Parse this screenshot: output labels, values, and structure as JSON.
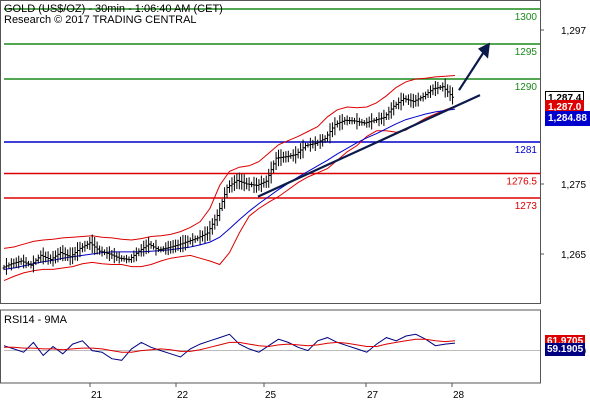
{
  "header": {
    "title": "GOLD (US$/OZ) - 30min - 1:06:40 AM (CET)",
    "source": "Research © 2017 TRADING CENTRAL"
  },
  "chart_data": [
    {
      "type": "candlestick",
      "title": "GOLD (US$/OZ) - 30min - 1:06:40 AM (CET)",
      "x_tick_labels": [
        "21",
        "22",
        "25",
        "27",
        "28"
      ],
      "y_tick_labels": [
        "1,297",
        "1,275",
        "1,265"
      ],
      "ylim": [
        1258,
        1301
      ],
      "levels": [
        {
          "label": "1300",
          "value": 1300,
          "color": "#1a8a1a"
        },
        {
          "label": "1295",
          "value": 1295,
          "color": "#1a8a1a"
        },
        {
          "label": "1290",
          "value": 1290,
          "color": "#1a8a1a"
        },
        {
          "label": "1281",
          "value": 1281,
          "color": "#0000cc"
        },
        {
          "label": "1276.5",
          "value": 1276.5,
          "color": "#dd0000"
        },
        {
          "label": "1273",
          "value": 1273,
          "color": "#dd0000"
        }
      ],
      "price_tags": [
        {
          "label": "1,287.4",
          "value": 1287.4,
          "bg": "#ffffff",
          "fg": "#000000"
        },
        {
          "label": "1,287.0",
          "value": 1286.1,
          "bg": "#dd0000",
          "fg": "#ffffff"
        },
        {
          "label": "1,284.88",
          "value": 1284.6,
          "bg": "#0000cc",
          "fg": "#ffffff"
        }
      ],
      "price_path": [
        1263,
        1263.6,
        1264,
        1263.4,
        1264.8,
        1264.2,
        1265.2,
        1264.6,
        1265.8,
        1266.6,
        1265.4,
        1265,
        1264.4,
        1264.2,
        1265.4,
        1266.4,
        1265.6,
        1265.9,
        1266.3,
        1266.8,
        1267.3,
        1268,
        1270.5,
        1274.5,
        1275.5,
        1275,
        1274.8,
        1275.4,
        1278.7,
        1278.9,
        1279.2,
        1280.5,
        1280.8,
        1281.5,
        1283.5,
        1284.1,
        1284,
        1283.7,
        1284.1,
        1284.5,
        1286.1,
        1287.2,
        1286.8,
        1287.5,
        1288.6,
        1288.9,
        1287.4
      ],
      "ma_path": [
        1262.8,
        1263,
        1263.3,
        1263.6,
        1263.9,
        1264.1,
        1264.4,
        1264.6,
        1264.8,
        1265,
        1265.2,
        1265.3,
        1265.3,
        1265.3,
        1265.3,
        1265.4,
        1265.5,
        1265.6,
        1265.8,
        1266,
        1266.3,
        1266.7,
        1267.4,
        1268.6,
        1269.9,
        1271.1,
        1272.2,
        1273.2,
        1274.2,
        1275.1,
        1276,
        1276.8,
        1277.6,
        1278.4,
        1279.3,
        1280.1,
        1280.9,
        1281.6,
        1282.2,
        1282.9,
        1283.6,
        1284.2,
        1284.6,
        1285,
        1285.3,
        1285.5,
        1285.7
      ],
      "bb_upper": [
        1265.8,
        1266,
        1266.4,
        1266.8,
        1267,
        1267.1,
        1267.3,
        1267.4,
        1267.5,
        1267.6,
        1267.4,
        1267.3,
        1267.1,
        1267,
        1267.2,
        1267.5,
        1267.6,
        1267.8,
        1268.2,
        1268.8,
        1269.6,
        1271.5,
        1274.8,
        1276.8,
        1277.4,
        1277.6,
        1278.2,
        1279.4,
        1280.6,
        1281.2,
        1281.8,
        1282.5,
        1283.2,
        1284.6,
        1285.6,
        1286,
        1285.9,
        1286,
        1286.6,
        1287.6,
        1288.8,
        1289.6,
        1290,
        1290.1,
        1290.3,
        1290.4,
        1290.5
      ],
      "bb_lower": [
        1261.2,
        1261.8,
        1262.3,
        1262.6,
        1262.8,
        1262.8,
        1263,
        1263.2,
        1263.6,
        1263.8,
        1263.6,
        1263.5,
        1263.5,
        1263.2,
        1263.2,
        1263.5,
        1264,
        1264.4,
        1264.6,
        1264.8,
        1264.4,
        1264,
        1263.5,
        1265.2,
        1268,
        1270.4,
        1271.5,
        1272.4,
        1273.2,
        1274.2,
        1275.2,
        1276,
        1276.6,
        1277.2,
        1278.4,
        1279.6,
        1280.5,
        1281.8,
        1282.6,
        1282.6,
        1282.4,
        1282.7,
        1283.6,
        1284.4,
        1285,
        1285.6,
        1286.1
      ],
      "trend_line": [
        [
          1273.2,
          "start"
        ],
        [
          1287.7,
          "end"
        ]
      ],
      "target_arrow": [
        1288.4,
        1295.2
      ]
    },
    {
      "type": "line",
      "title": "RSI14 - 9MA",
      "y_tick_labels": [
        "50"
      ],
      "ylim": [
        10,
        100
      ],
      "series": [
        {
          "name": "RSI14",
          "color": "#000080",
          "values": [
            56,
            52,
            48,
            60,
            44,
            55,
            46,
            58,
            62,
            50,
            48,
            40,
            38,
            52,
            60,
            54,
            50,
            46,
            42,
            52,
            58,
            62,
            66,
            70,
            58,
            52,
            48,
            56,
            64,
            60,
            54,
            50,
            62,
            66,
            60,
            56,
            52,
            48,
            58,
            66,
            62,
            68,
            70,
            64,
            56,
            58,
            59.1905
          ]
        },
        {
          "name": "9MA",
          "color": "#dd0000",
          "values": [
            54,
            54,
            53,
            53,
            52,
            52,
            51,
            52,
            53,
            53,
            52,
            50,
            48,
            48,
            50,
            51,
            52,
            51,
            49,
            49,
            51,
            54,
            57,
            60,
            60,
            58,
            56,
            55,
            57,
            58,
            57,
            56,
            57,
            59,
            60,
            59,
            57,
            55,
            55,
            58,
            60,
            62,
            64,
            64,
            62,
            61,
            61.9705
          ]
        }
      ],
      "value_tags": [
        {
          "label": "61.9705",
          "value": 61.9705,
          "bg": "#dd0000",
          "fg": "#ffffff"
        },
        {
          "label": "59.1905",
          "value": 59.1905,
          "bg": "#000080",
          "fg": "#ffffff"
        }
      ]
    }
  ]
}
